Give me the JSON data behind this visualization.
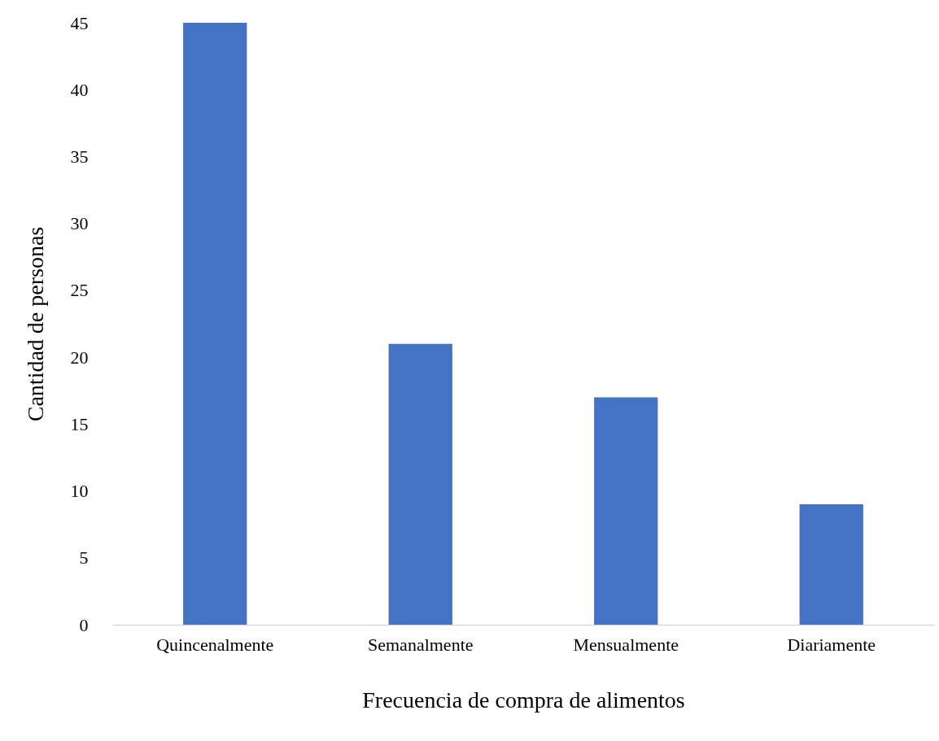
{
  "chart_data": {
    "type": "bar",
    "xlabel": "Frecuencia de compra de alimentos",
    "ylabel": "Cantidad de personas",
    "categories": [
      "Quincenalmente",
      "Semanalmente",
      "Mensualmente",
      "Diariamente"
    ],
    "values": [
      45,
      21,
      17,
      9
    ],
    "color": "#4472c4",
    "ylim": [
      0,
      45
    ],
    "yticks": [
      0,
      5,
      10,
      15,
      20,
      25,
      30,
      35,
      40,
      45
    ],
    "grid": false
  }
}
